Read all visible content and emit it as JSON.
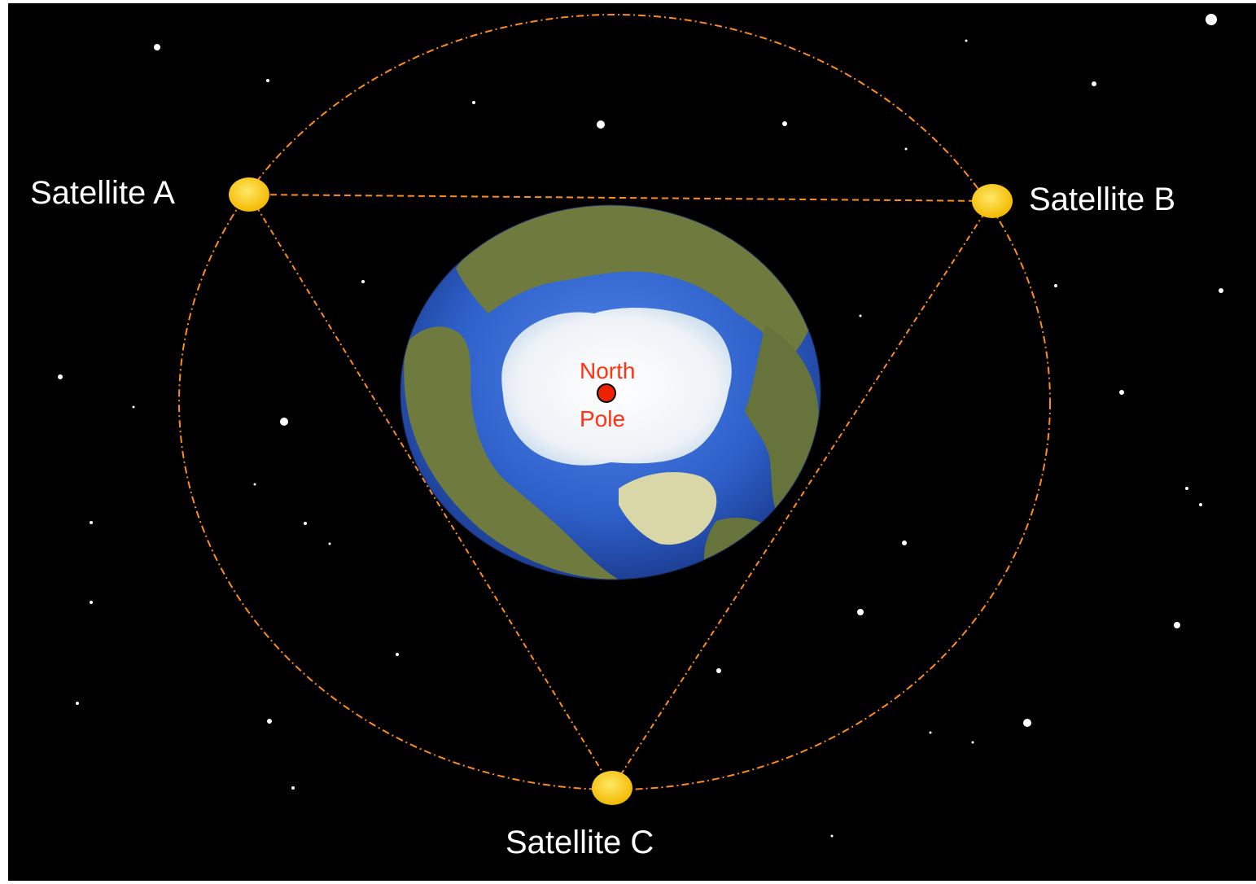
{
  "satellites": {
    "a": {
      "label": "Satellite A"
    },
    "b": {
      "label": "Satellite B"
    },
    "c": {
      "label": "Satellite C"
    }
  },
  "pole": {
    "line1": "North",
    "line2": "Pole"
  },
  "colors": {
    "background": "#000000",
    "orbit": "#ff8c1a",
    "satellite": "#ffd21a",
    "pole_marker": "#ee2200",
    "pole_text": "#ff3311",
    "ocean": "#2d5fc8",
    "land": "#6f7a3e",
    "ice": "#f2f2f2",
    "label": "#ffffff"
  }
}
